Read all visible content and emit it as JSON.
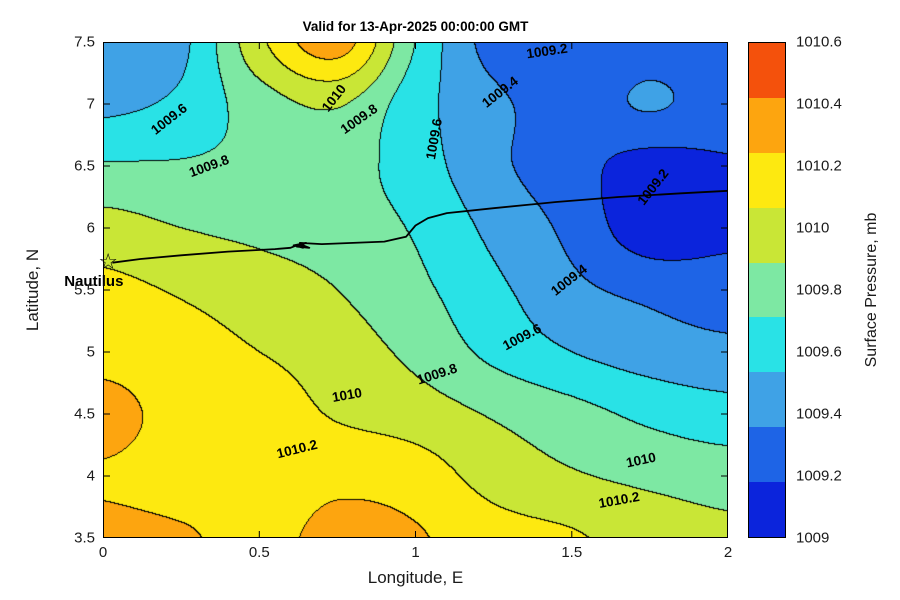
{
  "chart_data": {
    "type": "filled-contour",
    "title": "Valid for 13-Apr-2025 00:00:00 GMT",
    "xlabel": "Longitude, E",
    "ylabel": "Latitude, N",
    "xlim": [
      0,
      2
    ],
    "ylim": [
      3.5,
      7.5
    ],
    "x_ticks": [
      0,
      0.5,
      1,
      1.5,
      2
    ],
    "x_tick_labels": [
      "0",
      "0.5",
      "1",
      "1.5",
      "2"
    ],
    "y_ticks": [
      3.5,
      4,
      4.5,
      5,
      5.5,
      6,
      6.5,
      7,
      7.5
    ],
    "y_tick_labels": [
      "3.5",
      "4",
      "4.5",
      "5",
      "5.5",
      "6",
      "6.5",
      "7",
      "7.5"
    ],
    "unit": "mb",
    "level_step_mb": 0.2,
    "contour_levels": [
      1009.2,
      1009.4,
      1009.6,
      1009.8,
      1010,
      1010.2,
      1010.4
    ],
    "colorbar": {
      "label": "Surface Pressure, mb",
      "range": [
        1009,
        1010.6
      ],
      "tick_labels": [
        "1009",
        "1009.2",
        "1009.4",
        "1009.6",
        "1009.8",
        "1010",
        "1010.2",
        "1010.4",
        "1010.6"
      ],
      "segment_colors": [
        "#0b24dc",
        "#1e64e6",
        "#3fa2e6",
        "#29e2e6",
        "#7de8a3",
        "#c9e636",
        "#fde910",
        "#fda50f",
        "#f4510c"
      ]
    },
    "grid": {
      "lon": [
        0,
        0.25,
        0.5,
        0.75,
        1,
        1.25,
        1.5,
        1.75,
        2
      ],
      "lat": [
        3.5,
        4,
        4.5,
        5,
        5.5,
        6,
        6.5,
        7,
        7.5
      ],
      "pressure_mb": [
        [
          1010.45,
          1010.42,
          1010.35,
          1010.45,
          1010.42,
          1010.28,
          1010.22,
          1010.12,
          1010.05
        ],
        [
          1010.38,
          1010.32,
          1010.3,
          1010.35,
          1010.3,
          1010.12,
          1010.02,
          1009.95,
          1009.9
        ],
        [
          1010.48,
          1010.32,
          1010.3,
          1010.18,
          1010.1,
          1009.98,
          1009.87,
          1009.75,
          1009.68
        ],
        [
          1010.32,
          1010.27,
          1010.2,
          1010.1,
          1009.95,
          1009.75,
          1009.6,
          1009.5,
          1009.45
        ],
        [
          1010.25,
          1010.18,
          1010.1,
          1010.0,
          1009.85,
          1009.65,
          1009.45,
          1009.35,
          1009.3
        ],
        [
          1010.08,
          1010.0,
          1009.95,
          1009.9,
          1009.78,
          1009.55,
          1009.35,
          1009.08,
          1009.15
        ],
        [
          1009.82,
          1009.82,
          1009.85,
          1009.88,
          1009.7,
          1009.45,
          1009.28,
          1009.12,
          1009.18
        ],
        [
          1009.55,
          1009.65,
          1009.9,
          1010.02,
          1009.68,
          1009.45,
          1009.3,
          1009.42,
          1009.3
        ],
        [
          1009.45,
          1009.55,
          1010.15,
          1010.5,
          1009.8,
          1009.32,
          1009.25,
          1009.3,
          1009.28
        ]
      ]
    },
    "contour_labels": [
      {
        "text": "1009.2",
        "lon": 1.42,
        "lat": 7.43,
        "rotation": -8
      },
      {
        "text": "1009.4",
        "lon": 1.27,
        "lat": 7.1,
        "rotation": -38
      },
      {
        "text": "1009.6",
        "lon": 1.06,
        "lat": 6.72,
        "rotation": -80
      },
      {
        "text": "1009.6",
        "lon": 0.21,
        "lat": 6.88,
        "rotation": -38
      },
      {
        "text": "1009.8",
        "lon": 0.34,
        "lat": 6.5,
        "rotation": -20
      },
      {
        "text": "1010",
        "lon": 0.74,
        "lat": 7.05,
        "rotation": -52
      },
      {
        "text": "1009.8",
        "lon": 0.82,
        "lat": 6.88,
        "rotation": -35
      },
      {
        "text": "1009.2",
        "lon": 1.76,
        "lat": 6.33,
        "rotation": -52
      },
      {
        "text": "1009.4",
        "lon": 1.49,
        "lat": 5.58,
        "rotation": -38
      },
      {
        "text": "1009.6",
        "lon": 1.34,
        "lat": 5.12,
        "rotation": -28
      },
      {
        "text": "1009.8",
        "lon": 1.07,
        "lat": 4.82,
        "rotation": -18
      },
      {
        "text": "1010",
        "lon": 0.78,
        "lat": 4.65,
        "rotation": -10
      },
      {
        "text": "1010.2",
        "lon": 0.62,
        "lat": 4.22,
        "rotation": -14
      },
      {
        "text": "1010",
        "lon": 1.72,
        "lat": 4.13,
        "rotation": -12
      },
      {
        "text": "1010.2",
        "lon": 1.65,
        "lat": 3.81,
        "rotation": -10
      }
    ],
    "track": {
      "name": "Nautilus track",
      "points": [
        [
          0.03,
          5.72
        ],
        [
          0.12,
          5.75
        ],
        [
          0.25,
          5.78
        ],
        [
          0.4,
          5.81
        ],
        [
          0.55,
          5.83
        ],
        [
          0.6,
          5.84
        ],
        [
          0.63,
          5.87
        ],
        [
          0.66,
          5.84
        ],
        [
          0.62,
          5.85
        ],
        [
          0.65,
          5.88
        ],
        [
          0.61,
          5.86
        ],
        [
          0.64,
          5.84
        ],
        [
          0.63,
          5.88
        ],
        [
          0.7,
          5.87
        ],
        [
          0.8,
          5.88
        ],
        [
          0.9,
          5.89
        ],
        [
          0.97,
          5.93
        ],
        [
          1.0,
          6.02
        ],
        [
          1.04,
          6.08
        ],
        [
          1.1,
          6.12
        ],
        [
          1.25,
          6.16
        ],
        [
          1.45,
          6.21
        ],
        [
          1.65,
          6.25
        ],
        [
          1.85,
          6.28
        ],
        [
          2.0,
          6.3
        ]
      ],
      "marker": {
        "symbol": "star",
        "glyph": "☆",
        "lon": 0.02,
        "lat": 5.72,
        "label": "Nautilus"
      }
    }
  }
}
